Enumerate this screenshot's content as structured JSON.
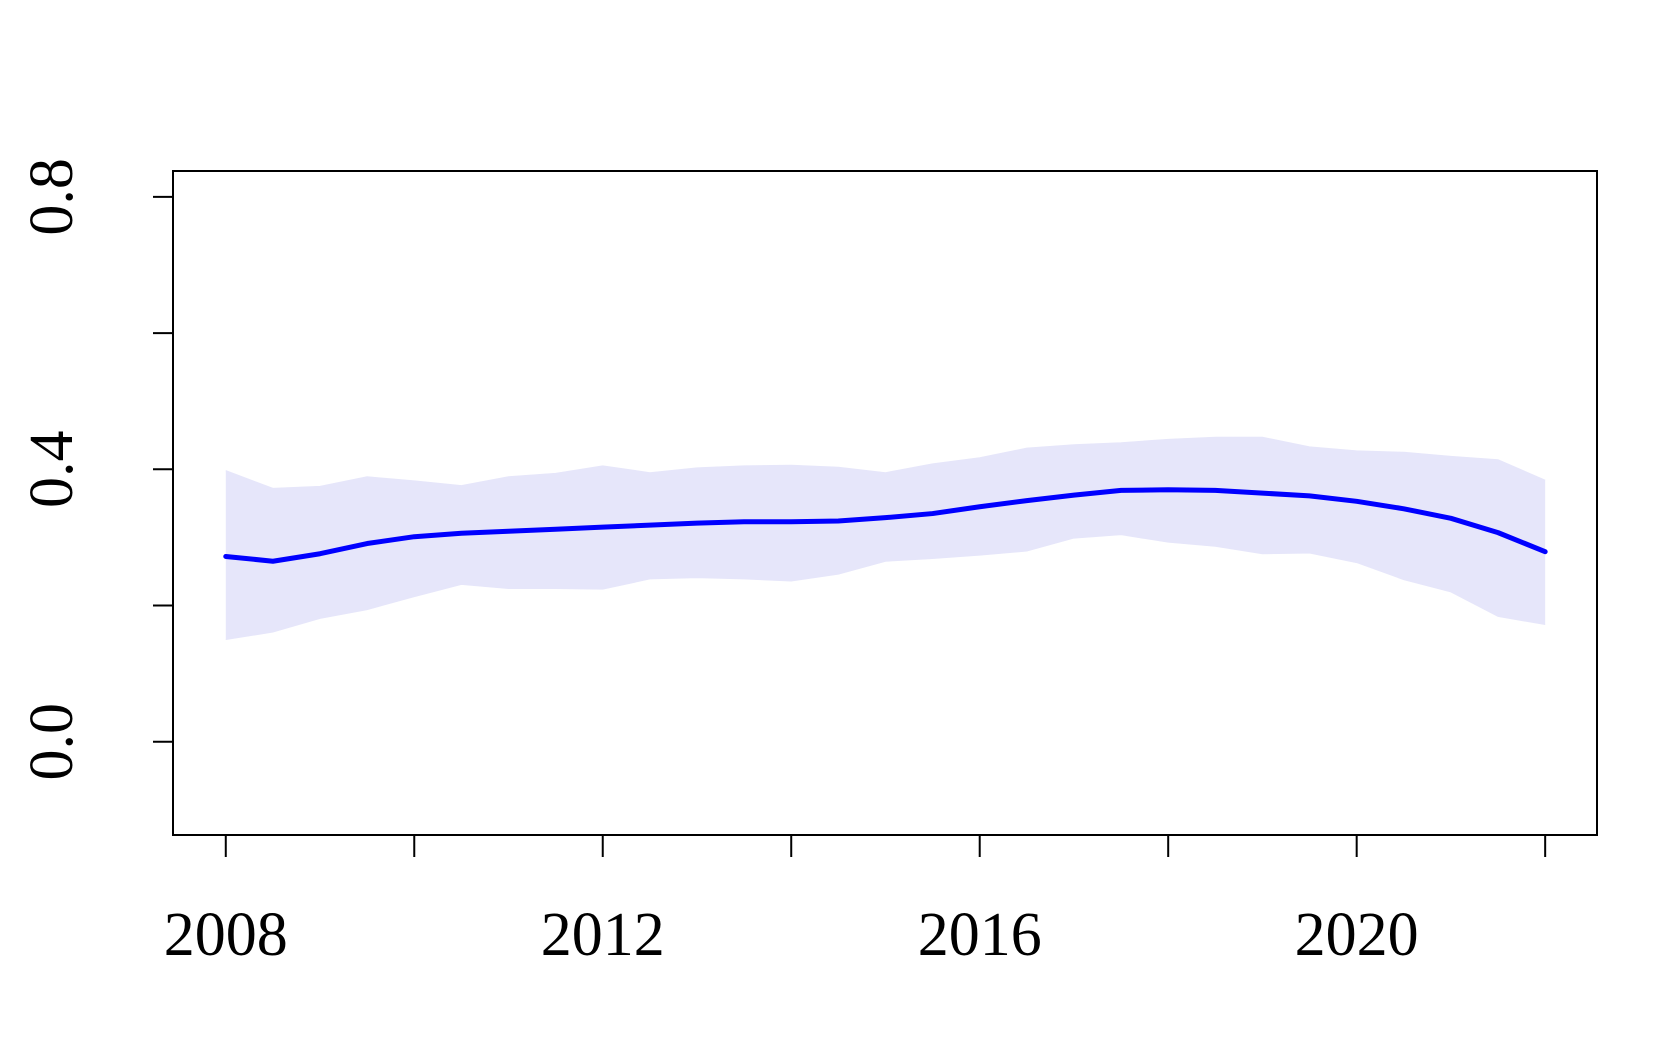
{
  "chart_data": {
    "type": "line",
    "x": [
      2008,
      2008.5,
      2009,
      2009.5,
      2010,
      2010.5,
      2011,
      2011.5,
      2012,
      2012.5,
      2013,
      2013.5,
      2014,
      2014.5,
      2015,
      2015.5,
      2016,
      2016.5,
      2017,
      2017.5,
      2018,
      2018.5,
      2019,
      2019.5,
      2020,
      2020.5,
      2021,
      2021.5,
      2022
    ],
    "values": [
      0.272,
      0.265,
      0.276,
      0.291,
      0.301,
      0.306,
      0.309,
      0.312,
      0.315,
      0.318,
      0.321,
      0.323,
      0.323,
      0.324,
      0.329,
      0.335,
      0.345,
      0.354,
      0.362,
      0.369,
      0.37,
      0.369,
      0.365,
      0.361,
      0.353,
      0.342,
      0.328,
      0.307,
      0.279
    ],
    "band_upper": [
      0.398,
      0.372,
      0.375,
      0.389,
      0.383,
      0.376,
      0.389,
      0.394,
      0.405,
      0.395,
      0.402,
      0.405,
      0.406,
      0.403,
      0.395,
      0.408,
      0.417,
      0.431,
      0.436,
      0.439,
      0.444,
      0.447,
      0.447,
      0.433,
      0.427,
      0.425,
      0.419,
      0.414,
      0.384
    ],
    "band_lower": [
      0.15,
      0.161,
      0.181,
      0.194,
      0.213,
      0.231,
      0.225,
      0.225,
      0.224,
      0.239,
      0.241,
      0.239,
      0.236,
      0.246,
      0.265,
      0.269,
      0.274,
      0.28,
      0.299,
      0.304,
      0.293,
      0.287,
      0.276,
      0.277,
      0.263,
      0.238,
      0.22,
      0.184,
      0.172
    ],
    "color": "#0000ff",
    "band_color": "#e6e6fa",
    "xlim": [
      2007.44,
      2022.55
    ],
    "ylim": [
      -0.137,
      0.838
    ],
    "xticks": [
      2008,
      2012,
      2016,
      2020
    ],
    "xminor_ticks": [
      2010,
      2014,
      2018,
      2022
    ],
    "yticks": [
      {
        "value": 0,
        "label": "0.0"
      },
      0.4,
      {
        "value": 0.8,
        "label": "0.8"
      }
    ],
    "yminor_ticks": [
      0.2,
      0.6
    ],
    "grid": false
  }
}
